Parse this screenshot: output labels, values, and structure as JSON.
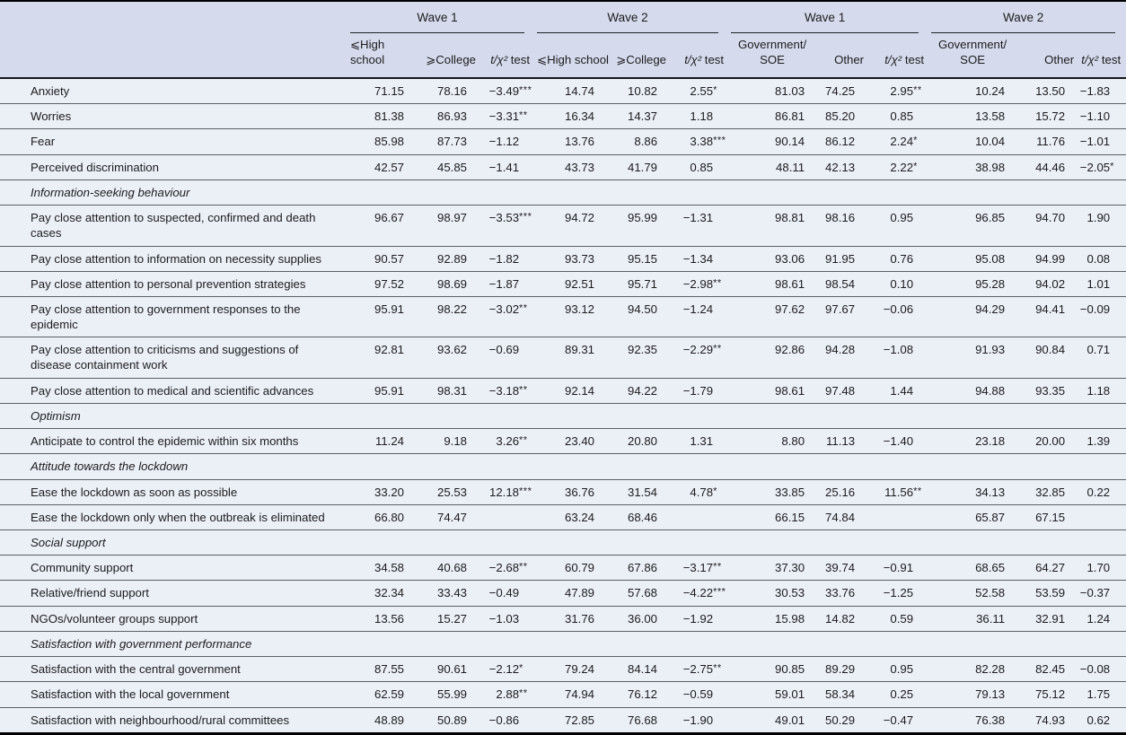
{
  "colors": {
    "header_bg": "#d5dbec",
    "row_bg": "#ebeff6",
    "line": "#5c5f66",
    "strong_line": "#1f2126",
    "border": "#000000",
    "text": "#1c1c1e"
  },
  "table": {
    "header": {
      "groups": [
        {
          "label": "Wave 1"
        },
        {
          "label": "Wave 2"
        },
        {
          "label": "Wave 1"
        },
        {
          "label": "Wave 2"
        }
      ],
      "test_label": {
        "prefix": "t/χ²",
        "suffix": "test"
      },
      "columns": [
        {
          "label": "⩽High school",
          "align": "left"
        },
        {
          "label": "⩾College",
          "align": "right"
        },
        {
          "test": true,
          "align": "right"
        },
        {
          "label": "⩽High school",
          "align": "left"
        },
        {
          "label": "⩾College",
          "align": "right"
        },
        {
          "test": true,
          "align": "right"
        },
        {
          "line1": "Government/",
          "line2": "SOE",
          "align": "center"
        },
        {
          "label": "Other",
          "align": "right"
        },
        {
          "test": true,
          "align": "right"
        },
        {
          "line1": "Government/",
          "line2": "SOE",
          "align": "center"
        },
        {
          "label": "Other",
          "align": "right"
        },
        {
          "test": true,
          "align": "right"
        }
      ]
    },
    "rows": [
      {
        "label": "Anxiety",
        "values": [
          "71.15",
          "78.16",
          "−3.49***",
          "14.74",
          "10.82",
          "2.55*",
          "81.03",
          "74.25",
          "2.95**",
          "10.24",
          "13.50",
          "−1.83"
        ]
      },
      {
        "label": "Worries",
        "values": [
          "81.38",
          "86.93",
          "−3.31**",
          "16.34",
          "14.37",
          "1.18",
          "86.81",
          "85.20",
          "0.85",
          "13.58",
          "15.72",
          "−1.10"
        ]
      },
      {
        "label": "Fear",
        "values": [
          "85.98",
          "87.73",
          "−1.12",
          "13.76",
          "8.86",
          "3.38***",
          "90.14",
          "86.12",
          "2.24*",
          "10.04",
          "11.76",
          "−1.01"
        ]
      },
      {
        "label": "Perceived discrimination",
        "values": [
          "42.57",
          "45.85",
          "−1.41",
          "43.73",
          "41.79",
          "0.85",
          "48.11",
          "42.13",
          "2.22*",
          "38.98",
          "44.46",
          "−2.05*"
        ]
      },
      {
        "section": "Information-seeking behaviour"
      },
      {
        "label": "Pay close attention to suspected, confirmed and death cases",
        "values": [
          "96.67",
          "98.97",
          "−3.53***",
          "94.72",
          "95.99",
          "−1.31",
          "98.81",
          "98.16",
          "0.95",
          "96.85",
          "94.70",
          "1.90"
        ]
      },
      {
        "label": "Pay close attention to information on necessity supplies",
        "values": [
          "90.57",
          "92.89",
          "−1.82",
          "93.73",
          "95.15",
          "−1.34",
          "93.06",
          "91.95",
          "0.76",
          "95.08",
          "94.99",
          "0.08"
        ]
      },
      {
        "label": "Pay close attention to personal prevention strategies",
        "values": [
          "97.52",
          "98.69",
          "−1.87",
          "92.51",
          "95.71",
          "−2.98**",
          "98.61",
          "98.54",
          "0.10",
          "95.28",
          "94.02",
          "1.01"
        ]
      },
      {
        "label": "Pay close attention to government responses to the epidemic",
        "values": [
          "95.91",
          "98.22",
          "−3.02**",
          "93.12",
          "94.50",
          "−1.24",
          "97.62",
          "97.67",
          "−0.06",
          "94.29",
          "94.41",
          "−0.09"
        ]
      },
      {
        "label": "Pay close attention to criticisms and suggestions of disease containment work",
        "values": [
          "92.81",
          "93.62",
          "−0.69",
          "89.31",
          "92.35",
          "−2.29**",
          "92.86",
          "94.28",
          "−1.08",
          "91.93",
          "90.84",
          "0.71"
        ]
      },
      {
        "label": "Pay close attention to medical and scientific advances",
        "values": [
          "95.91",
          "98.31",
          "−3.18**",
          "92.14",
          "94.22",
          "−1.79",
          "98.61",
          "97.48",
          "1.44",
          "94.88",
          "93.35",
          "1.18"
        ]
      },
      {
        "section": "Optimism"
      },
      {
        "label": "Anticipate to control the epidemic within six months",
        "values": [
          "11.24",
          "9.18",
          "3.26**",
          "23.40",
          "20.80",
          "1.31",
          "8.80",
          "11.13",
          "−1.40",
          "23.18",
          "20.00",
          "1.39"
        ]
      },
      {
        "section": "Attitude towards the lockdown"
      },
      {
        "label": "Ease the lockdown as soon as possible",
        "values": [
          "33.20",
          "25.53",
          "12.18***",
          "36.76",
          "31.54",
          "4.78*",
          "33.85",
          "25.16",
          "11.56**",
          "34.13",
          "32.85",
          "0.22"
        ]
      },
      {
        "label": "Ease the lockdown only when the outbreak is eliminated",
        "values": [
          "66.80",
          "74.47",
          "",
          "63.24",
          "68.46",
          "",
          "66.15",
          "74.84",
          "",
          "65.87",
          "67.15",
          ""
        ]
      },
      {
        "section": "Social support"
      },
      {
        "label": "Community support",
        "values": [
          "34.58",
          "40.68",
          "−2.68**",
          "60.79",
          "67.86",
          "−3.17**",
          "37.30",
          "39.74",
          "−0.91",
          "68.65",
          "64.27",
          "1.70"
        ]
      },
      {
        "label": "Relative/friend support",
        "values": [
          "32.34",
          "33.43",
          "−0.49",
          "47.89",
          "57.68",
          "−4.22***",
          "30.53",
          "33.76",
          "−1.25",
          "52.58",
          "53.59",
          "−0.37"
        ]
      },
      {
        "label": "NGOs/volunteer groups support",
        "values": [
          "13.56",
          "15.27",
          "−1.03",
          "31.76",
          "36.00",
          "−1.92",
          "15.98",
          "14.82",
          "0.59",
          "36.11",
          "32.91",
          "1.24"
        ]
      },
      {
        "section": "Satisfaction with government performance"
      },
      {
        "label": "Satisfaction with the central government",
        "values": [
          "87.55",
          "90.61",
          "−2.12*",
          "79.24",
          "84.14",
          "−2.75**",
          "90.85",
          "89.29",
          "0.95",
          "82.28",
          "82.45",
          "−0.08"
        ]
      },
      {
        "label": "Satisfaction with the local government",
        "values": [
          "62.59",
          "55.99",
          "2.88**",
          "74.94",
          "76.12",
          "−0.59",
          "59.01",
          "58.34",
          "0.25",
          "79.13",
          "75.12",
          "1.75"
        ]
      },
      {
        "label": "Satisfaction with neighbourhood/rural committees",
        "values": [
          "48.89",
          "50.89",
          "−0.86",
          "72.85",
          "76.68",
          "−1.90",
          "49.01",
          "50.29",
          "−0.47",
          "76.38",
          "74.93",
          "0.62"
        ]
      }
    ]
  }
}
